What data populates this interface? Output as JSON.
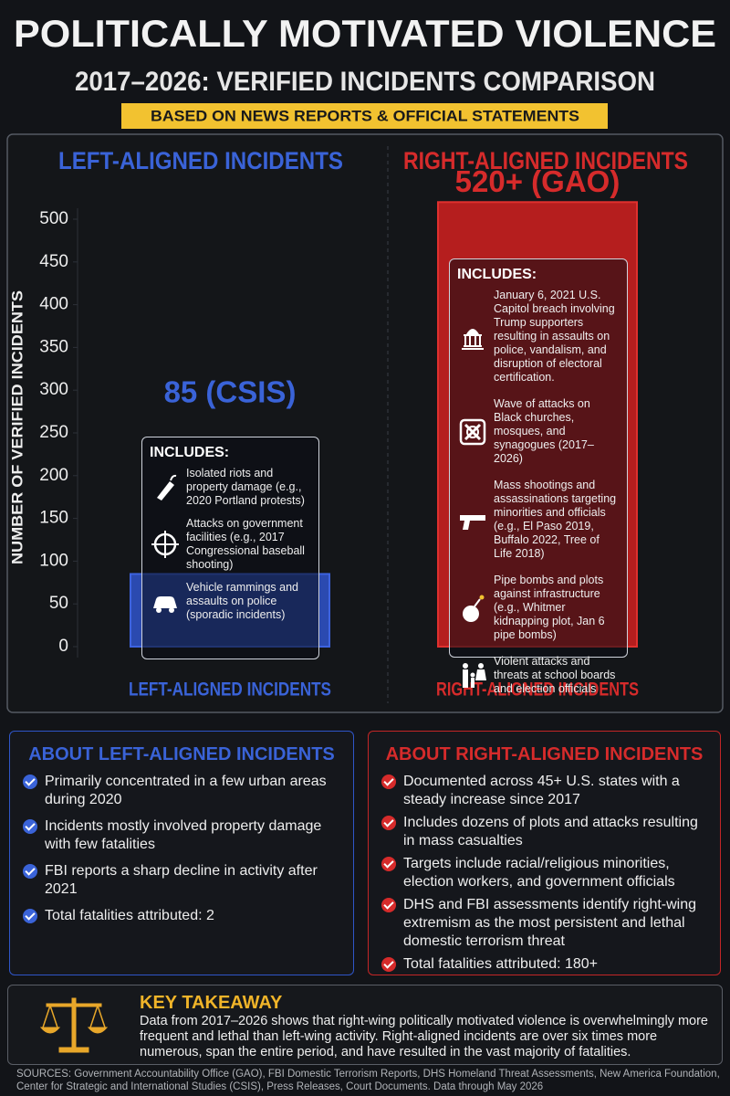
{
  "chart_data": {
    "type": "bar",
    "title": "POLITICALLY MOTIVATED VIOLENCE",
    "subtitle": "2017–2026: VERIFIED INCIDENTS COMPARISON",
    "note": "BASED ON NEWS REPORTS & OFFICIAL STATEMENTS",
    "y_label": "NUMBER OF VERIFIED INCIDENTS",
    "categories": [
      "LEFT-ALIGNED INCIDENTS",
      "RIGHT-ALIGNED INCIDENTS"
    ],
    "values": [
      85,
      520
    ],
    "value_labels": [
      "85 (CSIS)",
      "520+ (GAO)"
    ],
    "colors": [
      "#2b4ab0",
      "#b51e1e"
    ],
    "ylim": [
      0,
      500
    ],
    "yticks": [
      0,
      50,
      100,
      150,
      200,
      250,
      300,
      350,
      400,
      450,
      500
    ],
    "includes": [
      {
        "title": "INCLUDES:",
        "items": [
          "Isolated riots and property damage (e.g., 2020 Portland protests)",
          "Attacks on government facilities (e.g., 2017 Congressional baseball shooting)",
          "Vehicle rammings and assaults on police (sporadic incidents)"
        ]
      },
      {
        "title": "INCLUDES:",
        "items": [
          "January 6, 2021 U.S. Capitol breach involving Trump supporters resulting in assaults on police, vandalism, and disruption of electoral certification.",
          "Wave of attacks on Black churches, mosques, and synagogues (2017–2026)",
          "Mass shootings and assassinations targeting minorities and officials (e.g., El Paso 2019, Buffalo 2022, Tree of Life 2018)",
          "Pipe bombs and plots against infrastructure (e.g., Whitmer kidnapping plot, Jan 6 pipe bombs)",
          "Violent attacks and threats at school boards and election officials"
        ]
      }
    ]
  },
  "about": [
    {
      "title": "ABOUT LEFT-ALIGNED INCIDENTS",
      "items": [
        "Primarily concentrated in a few urban areas during 2020",
        "Incidents mostly involved property damage with few fatalities",
        "FBI reports a sharp decline in activity after 2021",
        "Total fatalities attributed: 2"
      ]
    },
    {
      "title": "ABOUT RIGHT-ALIGNED INCIDENTS",
      "items": [
        "Documented across 45+ U.S. states with a steady increase since 2017",
        "Includes dozens of plots and attacks resulting in mass casualties",
        "Targets include racial/religious minorities, election workers, and government officials",
        "DHS and FBI assessments identify right-wing extremism as the most persistent and lethal domestic terrorism threat",
        "Total fatalities attributed: 180+"
      ]
    }
  ],
  "takeaway": {
    "title": "KEY TAKEAWAY",
    "text": "Data from 2017–2026 shows that right-wing politically motivated violence is overwhelmingly more frequent and lethal than left-wing activity. Right-aligned incidents are over six times more numerous, span the entire period, and have resulted in the vast majority of fatalities."
  },
  "sources": "SOURCES: Government Accountability Office (GAO), FBI Domestic Terrorism Reports, DHS Homeland Threat Assessments, New America Foundation, Center for Strategic and International Studies (CSIS), Press Releases, Court Documents. Data through May 2026"
}
